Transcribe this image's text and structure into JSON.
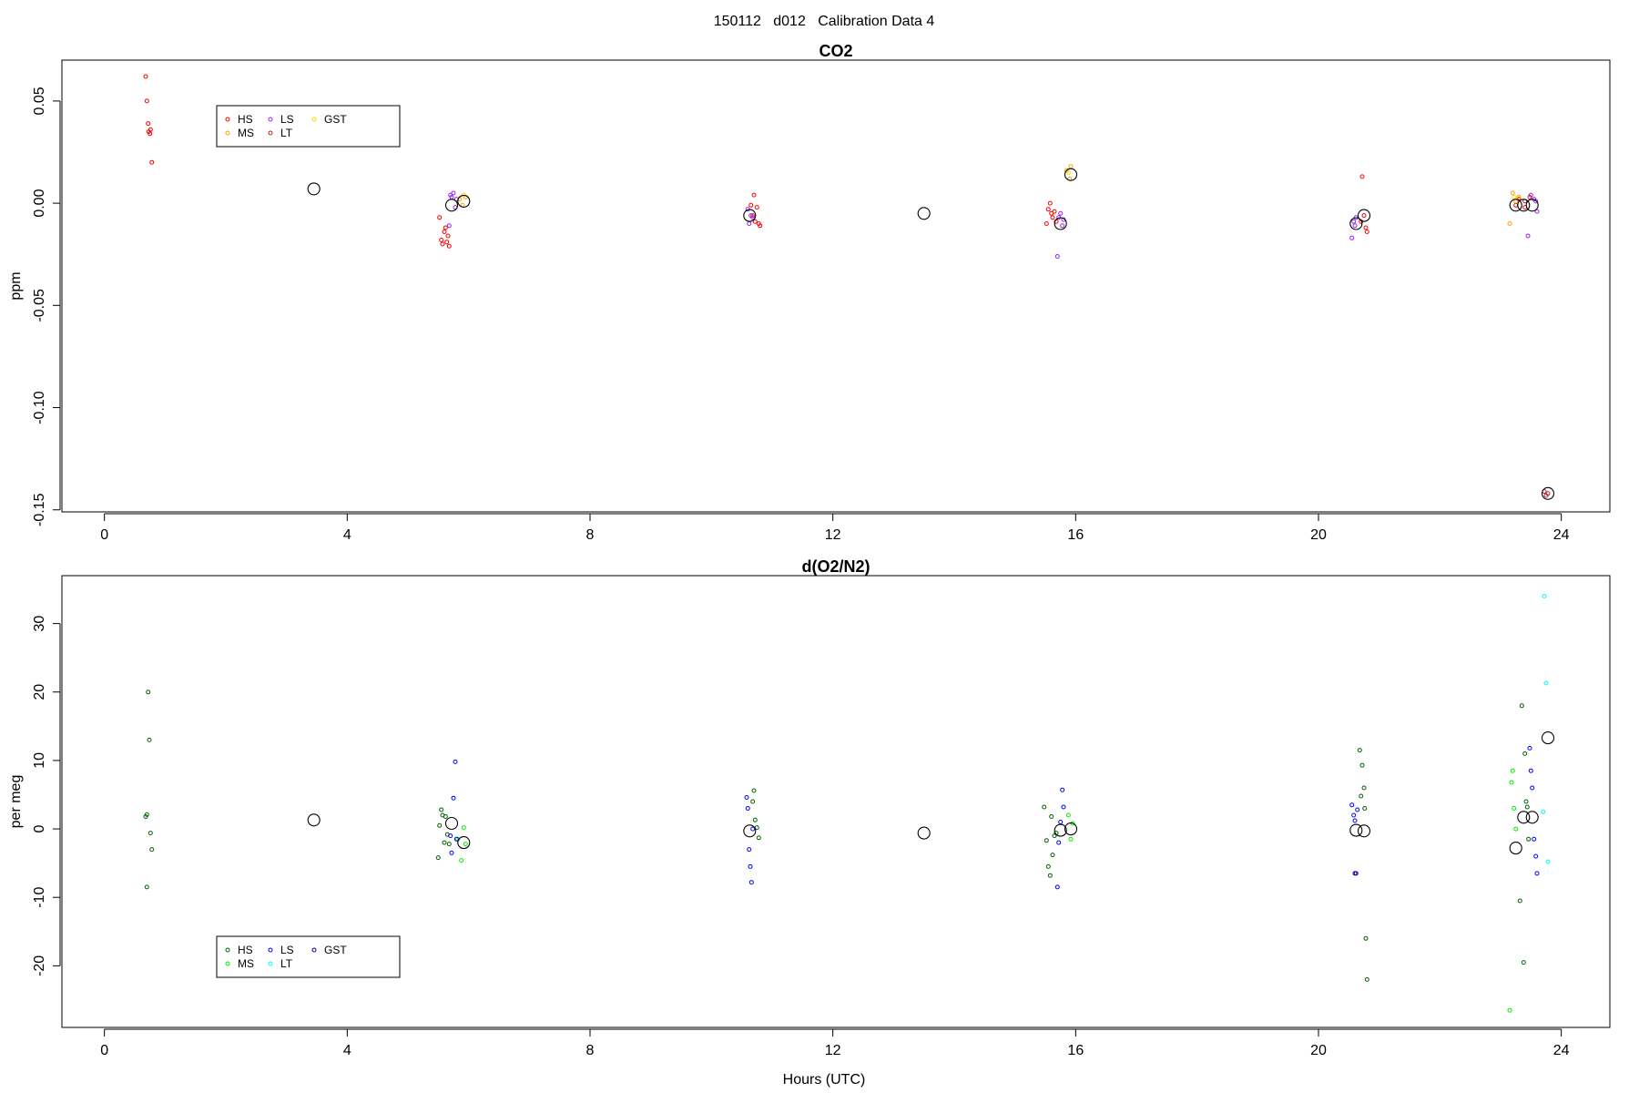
{
  "figure": {
    "title": "150112   d012   Calibration Data 4"
  },
  "chart_data": [
    {
      "type": "scatter",
      "title": "CO2",
      "xlabel": "",
      "ylabel": "ppm",
      "xlim": [
        -0.7,
        24.8
      ],
      "ylim": [
        -0.151,
        0.07
      ],
      "xticks": [
        0,
        4,
        8,
        12,
        16,
        20,
        24
      ],
      "yticks": [
        -0.15,
        -0.1,
        -0.05,
        0.0,
        0.05
      ],
      "ytick_labels": [
        "-0.15",
        "-0.10",
        "-0.05",
        "0.00",
        "0.05"
      ],
      "grid": false,
      "legend_position": "top-left",
      "legend": [
        {
          "label": "HS",
          "color": "#ff0000"
        },
        {
          "label": "MS",
          "color": "#ffa500"
        },
        {
          "label": "LS",
          "color": "#a020f0"
        },
        {
          "label": "LT",
          "color": "#b22222"
        },
        {
          "label": "GST",
          "color": "#ffd700"
        }
      ],
      "series": [
        {
          "name": "HS",
          "color": "#ff0000",
          "points": [
            [
              0.68,
              0.062
            ],
            [
              0.7,
              0.05
            ],
            [
              0.72,
              0.039
            ],
            [
              0.73,
              0.035
            ],
            [
              0.75,
              0.034
            ],
            [
              0.76,
              0.036
            ],
            [
              0.78,
              0.02
            ],
            [
              5.52,
              -0.007
            ],
            [
              5.55,
              -0.018
            ],
            [
              5.57,
              -0.02
            ],
            [
              5.6,
              -0.014
            ],
            [
              5.62,
              -0.012
            ],
            [
              5.64,
              -0.019
            ],
            [
              5.66,
              -0.016
            ],
            [
              5.68,
              -0.021
            ],
            [
              10.65,
              -0.001
            ],
            [
              10.7,
              0.004
            ],
            [
              10.72,
              -0.009
            ],
            [
              10.75,
              -0.002
            ],
            [
              10.78,
              -0.01
            ],
            [
              10.8,
              -0.011
            ],
            [
              10.68,
              -0.006
            ],
            [
              15.55,
              -0.003
            ],
            [
              15.58,
              0.0
            ],
            [
              15.6,
              -0.005
            ],
            [
              15.62,
              -0.007
            ],
            [
              15.65,
              -0.004
            ],
            [
              15.68,
              -0.009
            ],
            [
              15.52,
              -0.01
            ],
            [
              20.72,
              0.013
            ],
            [
              20.75,
              -0.006
            ],
            [
              20.78,
              -0.012
            ],
            [
              20.8,
              -0.014
            ],
            [
              20.7,
              -0.009
            ],
            [
              23.25,
              -0.001
            ],
            [
              23.3,
              0.002
            ],
            [
              23.4,
              -0.002
            ]
          ]
        },
        {
          "name": "MS",
          "color": "#ffa500",
          "points": [
            [
              5.85,
              0.002
            ],
            [
              5.9,
              -0.001
            ],
            [
              5.95,
              0.003
            ],
            [
              15.85,
              0.016
            ],
            [
              15.9,
              0.012
            ],
            [
              15.92,
              0.018
            ],
            [
              23.15,
              -0.01
            ],
            [
              23.2,
              0.005
            ],
            [
              23.25,
              0.001
            ],
            [
              23.3,
              0.003
            ]
          ]
        },
        {
          "name": "LS",
          "color": "#a020f0",
          "points": [
            [
              5.68,
              -0.011
            ],
            [
              5.7,
              0.004
            ],
            [
              5.72,
              0.003
            ],
            [
              5.75,
              0.005
            ],
            [
              5.78,
              -0.002
            ],
            [
              5.8,
              0.002
            ],
            [
              10.6,
              -0.003
            ],
            [
              10.62,
              -0.01
            ],
            [
              10.65,
              -0.006
            ],
            [
              10.68,
              -0.007
            ],
            [
              15.7,
              -0.026
            ],
            [
              15.72,
              -0.007
            ],
            [
              15.75,
              -0.005
            ],
            [
              15.78,
              -0.011
            ],
            [
              15.8,
              -0.008
            ],
            [
              20.55,
              -0.017
            ],
            [
              20.58,
              -0.009
            ],
            [
              20.6,
              -0.011
            ],
            [
              20.62,
              -0.007
            ],
            [
              23.45,
              -0.016
            ],
            [
              23.5,
              0.004
            ],
            [
              23.55,
              0.002
            ],
            [
              23.58,
              0.001
            ],
            [
              23.6,
              -0.004
            ]
          ]
        },
        {
          "name": "LT",
          "color": "#b22222",
          "points": [
            [
              23.72,
              -0.141
            ],
            [
              23.75,
              -0.143
            ],
            [
              23.78,
              -0.142
            ],
            [
              23.4,
              0.001
            ],
            [
              23.48,
              0.003
            ]
          ]
        },
        {
          "name": "GST",
          "color": "#ffd700",
          "points": [
            [
              5.92,
              0.004
            ],
            [
              15.88,
              0.015
            ],
            [
              23.22,
              0.003
            ]
          ]
        },
        {
          "name": "mean",
          "color": "#000000",
          "points": [
            [
              3.45,
              0.007
            ],
            [
              5.72,
              -0.001
            ],
            [
              5.92,
              0.001
            ],
            [
              10.63,
              -0.006
            ],
            [
              13.5,
              -0.005
            ],
            [
              15.75,
              -0.01
            ],
            [
              15.92,
              0.014
            ],
            [
              20.62,
              -0.01
            ],
            [
              20.75,
              -0.006
            ],
            [
              23.25,
              -0.001
            ],
            [
              23.38,
              -0.001
            ],
            [
              23.52,
              -0.001
            ],
            [
              23.78,
              -0.142
            ]
          ]
        }
      ]
    },
    {
      "type": "scatter",
      "title": "d(O2/N2)",
      "xlabel": "Hours (UTC)",
      "ylabel": "per meg",
      "xlim": [
        -0.7,
        24.8
      ],
      "ylim": [
        -29,
        37
      ],
      "xticks": [
        0,
        4,
        8,
        12,
        16,
        20,
        24
      ],
      "yticks": [
        -20,
        -10,
        0,
        10,
        20,
        30
      ],
      "ytick_labels": [
        "-20",
        "-10",
        "0",
        "10",
        "20",
        "30"
      ],
      "grid": false,
      "legend_position": "bottom-left",
      "legend": [
        {
          "label": "HS",
          "color": "#006400"
        },
        {
          "label": "MS",
          "color": "#00ee00"
        },
        {
          "label": "LS",
          "color": "#0000ff"
        },
        {
          "label": "LT",
          "color": "#00ffff"
        },
        {
          "label": "GST",
          "color": "#00008b"
        }
      ],
      "series": [
        {
          "name": "HS",
          "color": "#006400",
          "points": [
            [
              0.68,
              1.8
            ],
            [
              0.7,
              2.1
            ],
            [
              0.72,
              20.0
            ],
            [
              0.74,
              13.0
            ],
            [
              0.76,
              -0.6
            ],
            [
              0.78,
              -3.0
            ],
            [
              0.7,
              -8.5
            ],
            [
              5.5,
              -4.2
            ],
            [
              5.52,
              0.5
            ],
            [
              5.55,
              2.8
            ],
            [
              5.57,
              2.0
            ],
            [
              5.6,
              -2.0
            ],
            [
              5.62,
              1.8
            ],
            [
              5.65,
              -0.8
            ],
            [
              5.68,
              -2.2
            ],
            [
              10.68,
              4.0
            ],
            [
              10.72,
              1.3
            ],
            [
              10.75,
              0.2
            ],
            [
              10.78,
              -1.3
            ],
            [
              10.7,
              5.6
            ],
            [
              15.48,
              3.2
            ],
            [
              15.52,
              -1.7
            ],
            [
              15.55,
              -5.5
            ],
            [
              15.58,
              -6.8
            ],
            [
              15.6,
              1.8
            ],
            [
              15.62,
              -3.8
            ],
            [
              15.65,
              -1.0
            ],
            [
              15.68,
              -0.6
            ],
            [
              20.68,
              11.5
            ],
            [
              20.72,
              9.3
            ],
            [
              20.75,
              6.0
            ],
            [
              20.78,
              -16.0
            ],
            [
              20.8,
              -22.0
            ],
            [
              20.7,
              4.8
            ],
            [
              20.76,
              3.0
            ],
            [
              23.35,
              18.0
            ],
            [
              23.38,
              -19.5
            ],
            [
              23.32,
              -10.5
            ],
            [
              23.4,
              11.0
            ],
            [
              23.42,
              4.0
            ],
            [
              23.44,
              3.2
            ],
            [
              23.46,
              -1.5
            ]
          ]
        },
        {
          "name": "MS",
          "color": "#00ee00",
          "points": [
            [
              5.82,
              -1.5
            ],
            [
              5.88,
              -4.6
            ],
            [
              5.92,
              0.2
            ],
            [
              5.95,
              -2.2
            ],
            [
              15.88,
              2.0
            ],
            [
              15.92,
              -1.5
            ],
            [
              15.95,
              0.8
            ],
            [
              23.15,
              -26.5
            ],
            [
              23.18,
              6.8
            ],
            [
              23.2,
              8.5
            ],
            [
              23.22,
              3.0
            ],
            [
              23.25,
              0.0
            ]
          ]
        },
        {
          "name": "LS",
          "color": "#0000ff",
          "points": [
            [
              5.7,
              -1.0
            ],
            [
              5.72,
              -3.5
            ],
            [
              5.75,
              4.5
            ],
            [
              5.78,
              9.8
            ],
            [
              5.8,
              -1.5
            ],
            [
              10.58,
              4.6
            ],
            [
              10.6,
              3.0
            ],
            [
              10.62,
              -3.0
            ],
            [
              10.64,
              -5.5
            ],
            [
              10.66,
              -7.8
            ],
            [
              10.68,
              0.0
            ],
            [
              15.7,
              -8.5
            ],
            [
              15.72,
              -2.0
            ],
            [
              15.75,
              1.0
            ],
            [
              15.78,
              5.7
            ],
            [
              15.8,
              3.2
            ],
            [
              20.55,
              3.5
            ],
            [
              20.58,
              2.0
            ],
            [
              20.6,
              1.2
            ],
            [
              20.62,
              -6.5
            ],
            [
              20.64,
              2.8
            ],
            [
              23.5,
              8.5
            ],
            [
              23.52,
              6.0
            ],
            [
              23.55,
              -1.5
            ],
            [
              23.58,
              -4.0
            ],
            [
              23.6,
              -6.5
            ],
            [
              23.48,
              11.8
            ]
          ]
        },
        {
          "name": "LT",
          "color": "#00ffff",
          "points": [
            [
              23.72,
              34.0
            ],
            [
              23.75,
              21.3
            ],
            [
              23.7,
              2.5
            ],
            [
              23.78,
              -4.8
            ]
          ]
        },
        {
          "name": "GST",
          "color": "#00008b",
          "points": [
            [
              20.6,
              -6.5
            ]
          ]
        },
        {
          "name": "mean",
          "color": "#000000",
          "points": [
            [
              3.45,
              1.3
            ],
            [
              5.72,
              0.8
            ],
            [
              5.92,
              -2.0
            ],
            [
              10.63,
              -0.3
            ],
            [
              13.5,
              -0.6
            ],
            [
              15.75,
              -0.2
            ],
            [
              15.92,
              0.0
            ],
            [
              20.62,
              -0.2
            ],
            [
              20.75,
              -0.3
            ],
            [
              23.25,
              -2.8
            ],
            [
              23.38,
              1.7
            ],
            [
              23.52,
              1.7
            ],
            [
              23.78,
              13.3
            ]
          ]
        }
      ]
    }
  ]
}
